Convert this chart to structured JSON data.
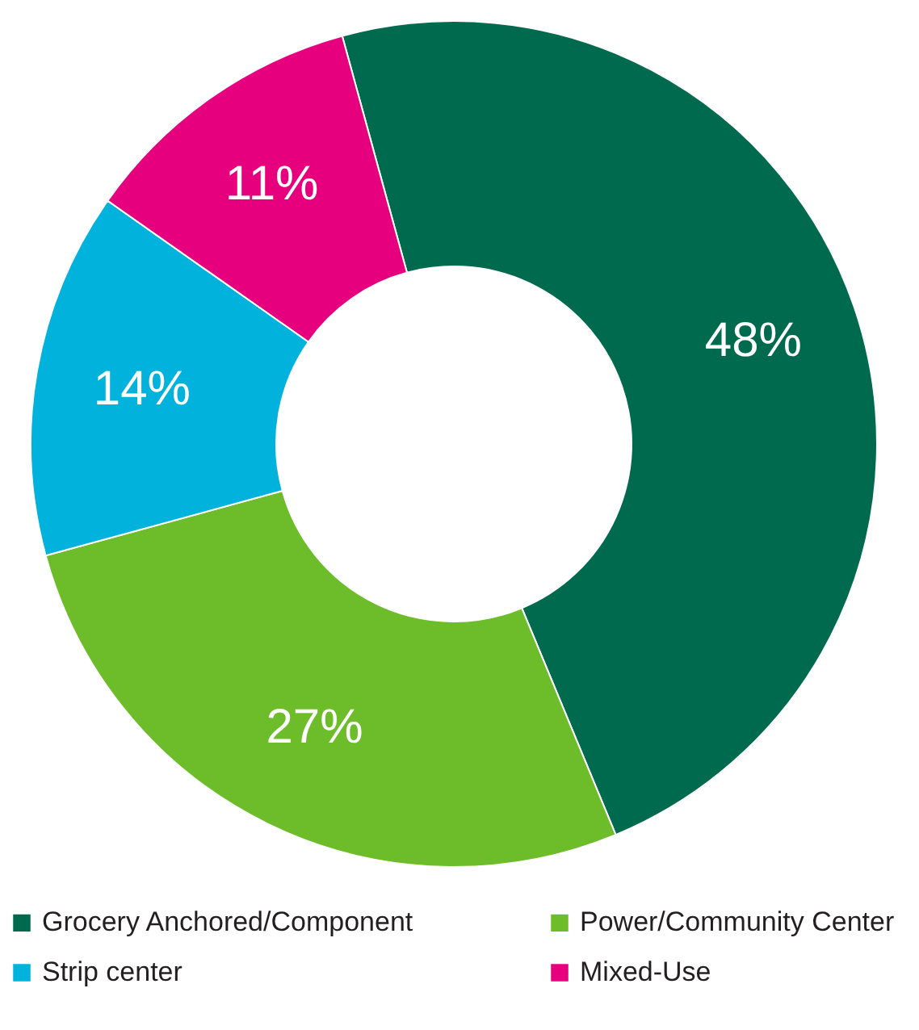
{
  "chart_data": {
    "type": "donut",
    "categories": [
      "Grocery Anchored/Component",
      "Power/Community Center",
      "Strip center",
      "Mixed-Use"
    ],
    "values": [
      48,
      27,
      14,
      11
    ],
    "value_labels": [
      "48%",
      "27%",
      "14%",
      "11%"
    ],
    "colors": [
      "#006a4e",
      "#6dbd2a",
      "#00b2dc",
      "#e6007e"
    ],
    "legend": "bottom"
  }
}
